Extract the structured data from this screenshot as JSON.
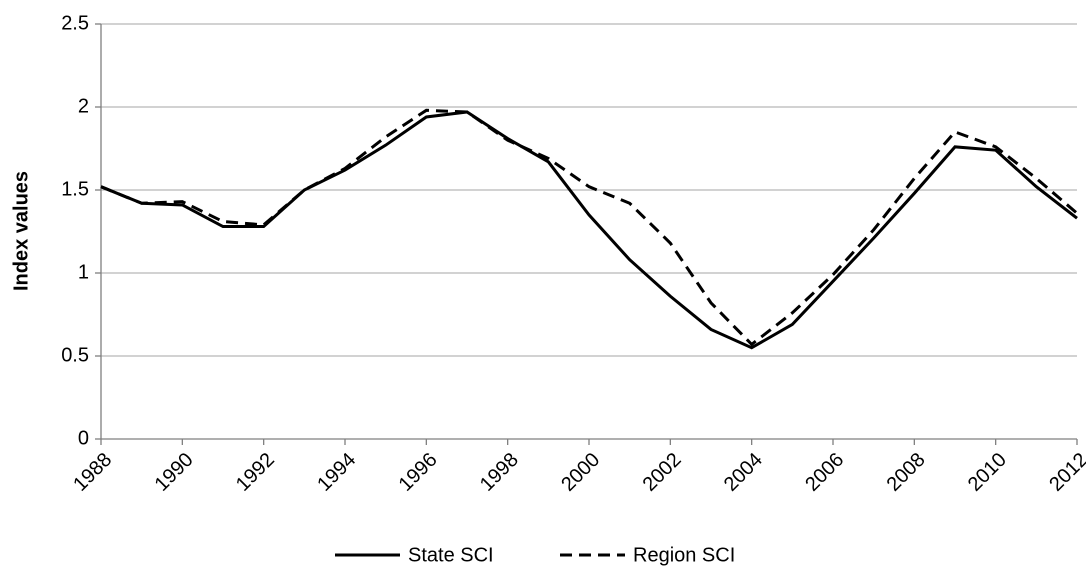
{
  "chart_data": {
    "type": "line",
    "y_label": "Index values",
    "x": [
      1988,
      1989,
      1990,
      1991,
      1992,
      1993,
      1994,
      1995,
      1996,
      1997,
      1998,
      1999,
      2000,
      2001,
      2002,
      2003,
      2004,
      2005,
      2006,
      2007,
      2008,
      2009,
      2010,
      2011,
      2012
    ],
    "series": [
      {
        "name": "State SCI",
        "color": "#000000",
        "dash": "solid",
        "values": [
          1.52,
          1.42,
          1.41,
          1.28,
          1.28,
          1.5,
          1.62,
          1.77,
          1.94,
          1.97,
          1.81,
          1.67,
          1.35,
          1.08,
          0.86,
          0.66,
          0.55,
          0.69,
          0.95,
          1.21,
          1.48,
          1.76,
          1.74,
          1.52,
          1.33
        ]
      },
      {
        "name": "Region SCI",
        "color": "#000000",
        "dash": "dashed",
        "values": [
          1.52,
          1.42,
          1.43,
          1.31,
          1.29,
          1.5,
          1.63,
          1.82,
          1.98,
          1.97,
          1.8,
          1.69,
          1.52,
          1.42,
          1.18,
          0.82,
          0.57,
          0.76,
          0.99,
          1.26,
          1.57,
          1.85,
          1.76,
          1.57,
          1.36
        ]
      }
    ],
    "xlim": [
      1988,
      2012
    ],
    "xticks": [
      1988,
      1990,
      1992,
      1994,
      1996,
      1998,
      2000,
      2002,
      2004,
      2006,
      2008,
      2010,
      2012
    ],
    "ylim": [
      0,
      2.5
    ],
    "yticks": [
      0,
      0.5,
      1,
      1.5,
      2,
      2.5
    ],
    "grid": true,
    "legend": "bottom"
  }
}
